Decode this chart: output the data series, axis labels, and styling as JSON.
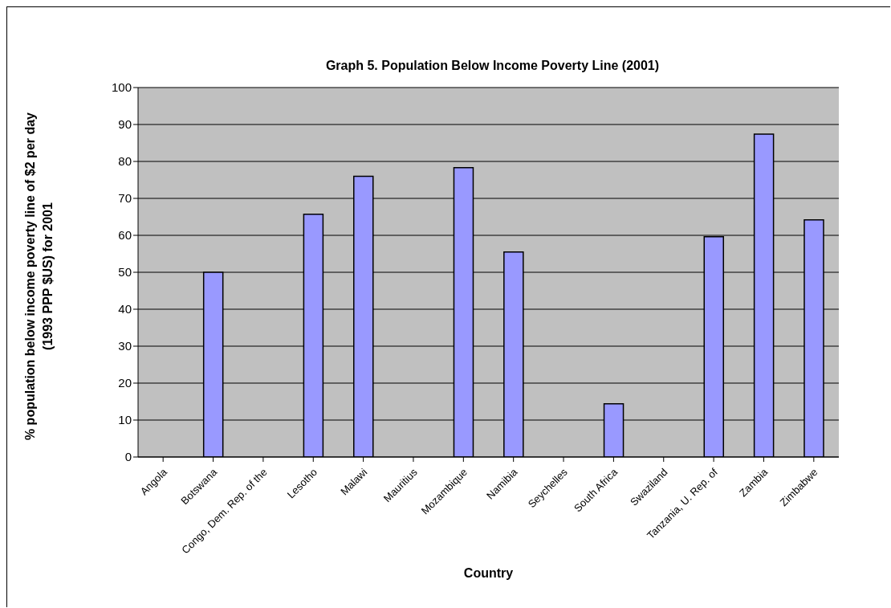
{
  "chart_data": {
    "type": "bar",
    "title": "Graph 5. Population Below Income Poverty Line (2001)",
    "xlabel": "Country",
    "ylabel": "% population below income poverty line of $2 per day (1993 PPP $US) for 2001",
    "categories": [
      "Angola",
      "Botswana",
      "Congo, Dem. Rep. of the",
      "Lesotho",
      "Malawi",
      "Mauritius",
      "Mozambique",
      "Namibia",
      "Seychelles",
      "South Africa",
      "Swaziland",
      "Tanzania, U. Rep. of",
      "Zambia",
      "Zimbabwe"
    ],
    "values": [
      null,
      50.0,
      null,
      65.7,
      76.0,
      null,
      78.3,
      55.5,
      null,
      14.4,
      null,
      59.6,
      87.4,
      64.2
    ],
    "color": "#9999ff",
    "ylim": [
      0,
      100
    ],
    "yticks": [
      0,
      10,
      20,
      30,
      40,
      50,
      60,
      70,
      80,
      90,
      100
    ],
    "grid": "y",
    "legend": false
  }
}
